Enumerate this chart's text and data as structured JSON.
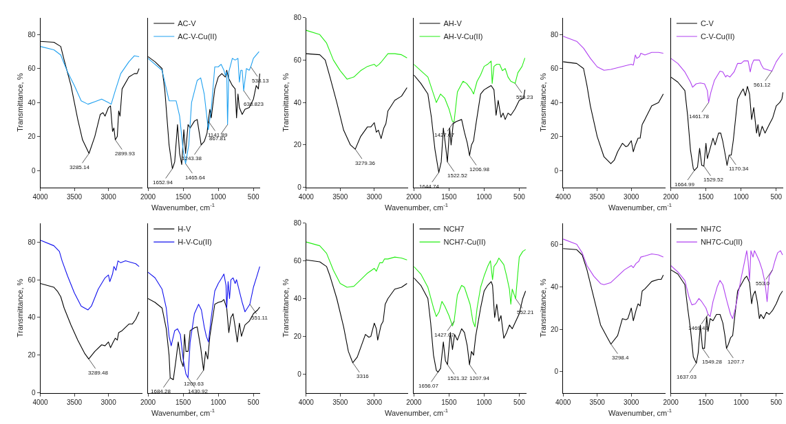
{
  "chart_data": [
    {
      "type": "line",
      "ylabel": "Transmittance, %",
      "xlim": [
        4000,
        2500
      ],
      "xticks": [
        4000,
        3500,
        3000
      ],
      "ylim": [
        -10,
        90
      ],
      "yticks": [
        0,
        20,
        40,
        60,
        80
      ],
      "series": [
        {
          "color": "#000000",
          "x": [
            4000,
            3800,
            3700,
            3650,
            3550,
            3450,
            3380,
            3285.14,
            3200,
            3120,
            3080,
            3050,
            3000,
            2970,
            2940,
            2920,
            2899.93,
            2870,
            2850,
            2830,
            2800,
            2700,
            2620,
            2580,
            2550
          ],
          "values": [
            76,
            75.5,
            73,
            65,
            50,
            30,
            18,
            10,
            20,
            33,
            34,
            32,
            37,
            38,
            23,
            25,
            18,
            20,
            35,
            32,
            48,
            55,
            57,
            57,
            60
          ]
        },
        {
          "color": "#1ea0f0",
          "x": [
            4000,
            3800,
            3700,
            3600,
            3500,
            3400,
            3300,
            3200,
            3100,
            3000,
            2960,
            2900,
            2820,
            2700,
            2620,
            2550
          ],
          "values": [
            73,
            71,
            68,
            58,
            50,
            41,
            39,
            40.5,
            42,
            40,
            39,
            47,
            57,
            64,
            67.5,
            67
          ]
        }
      ],
      "annotations": [
        {
          "text": "3285.14",
          "x": 3285.14,
          "y": 10
        },
        {
          "text": "2899.93",
          "x": 2899.93,
          "y": 18
        }
      ]
    },
    {
      "type": "line",
      "xlabel": "Wavenumber, cm$^{-1}$",
      "xlim": [
        2000,
        400
      ],
      "xticks": [
        2000,
        1500,
        1000,
        500
      ],
      "ylim": [
        -10,
        90
      ],
      "tick_labels": "x",
      "legend": "top left",
      "series": [
        {
          "name": "AC-V",
          "color": "#000000",
          "x": [
            2000,
            1900,
            1800,
            1760,
            1700,
            1652.94,
            1620,
            1580,
            1550,
            1520,
            1490,
            1465.64,
            1430,
            1400,
            1340,
            1300,
            1243.38,
            1200,
            1160,
            1141.89,
            1120,
            1100,
            1050,
            1000,
            950,
            900,
            880,
            850,
            800,
            760,
            740,
            720,
            700,
            660,
            620,
            560,
            500,
            460,
            430,
            410
          ],
          "values": [
            67,
            64,
            60,
            47,
            15,
            1,
            5,
            27,
            10,
            3.5,
            24,
            10,
            27,
            25,
            29,
            30,
            15,
            17,
            22,
            29,
            36,
            31,
            48,
            55,
            57,
            55,
            59,
            54,
            50,
            48,
            31,
            45,
            37,
            33,
            36,
            37,
            42,
            50,
            48,
            57
          ]
        },
        {
          "name": "AC-V-Cu(II)",
          "color": "#1ea0f0",
          "x": [
            2000,
            1800,
            1700,
            1600,
            1550,
            1500,
            1465.64,
            1420,
            1380,
            1300,
            1250,
            1200,
            1141.89,
            1100,
            1050,
            1000,
            960,
            920,
            900,
            880,
            867.81,
            850,
            800,
            760,
            720,
            700,
            680,
            660,
            638.823,
            600,
            560,
            538.13,
            500,
            420
          ],
          "values": [
            66,
            59,
            41,
            41,
            32,
            12,
            4,
            15,
            40,
            53,
            54.5,
            45,
            24,
            36,
            61,
            61,
            62.5,
            59,
            56,
            58,
            27,
            58,
            66,
            65,
            66,
            52,
            59,
            59,
            47,
            60,
            59,
            61,
            66,
            70
          ]
        }
      ],
      "annotations": [
        {
          "text": "1652.94",
          "x": 1652.94,
          "y": 1
        },
        {
          "text": "1465.64",
          "x": 1465.64,
          "y": 4
        },
        {
          "text": "1243.38",
          "x": 1243.38,
          "y": 15
        },
        {
          "text": "1141.89",
          "x": 1141.89,
          "y": 29
        },
        {
          "text": "867.81",
          "x": 867.81,
          "y": 27
        },
        {
          "text": "638.823",
          "x": 638.823,
          "y": 47
        },
        {
          "text": "538.13",
          "x": 538.13,
          "y": 61
        }
      ]
    },
    {
      "type": "line",
      "ylabel": "Transmittance, %",
      "xlim": [
        4000,
        2500
      ],
      "xticks": [
        4000,
        3500,
        3000
      ],
      "ylim": [
        0,
        80
      ],
      "yticks": [
        0,
        20,
        40,
        60,
        80
      ],
      "series": [
        {
          "color": "#000000",
          "x": [
            4000,
            3800,
            3720,
            3650,
            3550,
            3450,
            3350,
            3279.36,
            3200,
            3100,
            3050,
            3000,
            2970,
            2940,
            2900,
            2860,
            2830,
            2800,
            2700,
            2600,
            2520
          ],
          "values": [
            63,
            62.5,
            60,
            52,
            40,
            27,
            20,
            18,
            24,
            28.5,
            28.5,
            30.5,
            26,
            27,
            23,
            28,
            30,
            36,
            41,
            43,
            47
          ]
        },
        {
          "color": "#22ee11",
          "x": [
            4000,
            3800,
            3700,
            3600,
            3500,
            3400,
            3300,
            3200,
            3100,
            3000,
            2970,
            2930,
            2900,
            2800,
            2700,
            2600,
            2520
          ],
          "values": [
            74,
            72,
            68,
            60,
            55,
            51,
            52,
            55,
            57,
            58,
            57,
            58,
            59,
            63,
            63,
            62.5,
            61
          ]
        }
      ],
      "annotations": [
        {
          "text": "3279.36",
          "x": 3279.36,
          "y": 18
        }
      ]
    },
    {
      "type": "line",
      "xlabel": "Wavenumber, cm$^{-1}$",
      "xlim": [
        2000,
        400
      ],
      "xticks": [
        2000,
        1500,
        1000,
        500
      ],
      "ylim": [
        0,
        80
      ],
      "tick_labels": "x",
      "legend": "top left",
      "series": [
        {
          "name": "AH-V",
          "color": "#000000",
          "x": [
            2000,
            1900,
            1800,
            1750,
            1700,
            1644.74,
            1610,
            1580,
            1550,
            1522.52,
            1490,
            1470,
            1440,
            1400,
            1320,
            1280,
            1240,
            1206.98,
            1180,
            1150,
            1120,
            1050,
            1000,
            950,
            900,
            860,
            830,
            800,
            760,
            730,
            700,
            660,
            620,
            560,
            500,
            440,
            420
          ],
          "values": [
            53,
            49,
            44,
            33,
            18,
            7,
            12,
            28,
            20,
            12,
            28,
            20,
            30,
            31,
            32,
            26,
            21,
            15,
            20,
            22,
            29,
            44,
            46,
            47,
            48,
            46,
            34,
            41,
            33,
            35,
            32,
            35,
            34,
            37,
            41,
            42,
            46
          ]
        },
        {
          "name": "AH-V-Cu(II)",
          "color": "#22ee11",
          "x": [
            2000,
            1900,
            1800,
            1720,
            1680,
            1620,
            1560,
            1500,
            1450,
            1427.07,
            1380,
            1300,
            1250,
            1180,
            1150,
            1100,
            1050,
            1000,
            950,
            900,
            885,
            860,
            820,
            780,
            740,
            700,
            660,
            620,
            559.23,
            520,
            460,
            420
          ],
          "values": [
            58,
            55,
            52,
            44,
            40,
            44,
            42,
            37,
            31,
            31,
            45,
            50,
            49,
            46,
            44,
            50,
            53,
            57,
            58,
            59.5,
            49,
            57,
            58,
            58,
            55,
            56,
            52,
            50,
            49,
            54,
            57,
            61
          ]
        }
      ],
      "annotations": [
        {
          "text": "1644.74",
          "x": 1644.74,
          "y": 7
        },
        {
          "text": "1522.52",
          "x": 1522.52,
          "y": 12
        },
        {
          "text": "1206.98",
          "x": 1206.98,
          "y": 15
        },
        {
          "text": "1427.07",
          "x": 1427.07,
          "y": 31
        },
        {
          "text": "559.23",
          "x": 559.23,
          "y": 49
        }
      ]
    },
    {
      "type": "line",
      "ylabel": "Transmittance, %",
      "xlim": [
        4000,
        2500
      ],
      "xticks": [
        4000,
        3500,
        3000
      ],
      "ylim": [
        -10,
        90
      ],
      "yticks": [
        0,
        20,
        40,
        60,
        80
      ],
      "series": [
        {
          "color": "#000000",
          "x": [
            4000,
            3800,
            3700,
            3650,
            3600,
            3500,
            3400,
            3300,
            3250,
            3200,
            3130,
            3080,
            3050,
            3000,
            2970,
            2940,
            2900,
            2870,
            2840,
            2800,
            2700,
            2600,
            2530
          ],
          "values": [
            64,
            63,
            60,
            50,
            38,
            20,
            8,
            4,
            6,
            11,
            16,
            14,
            14.5,
            17.5,
            11,
            15,
            19,
            19,
            27,
            30,
            38,
            40,
            45
          ]
        },
        {
          "color": "#b040f0",
          "x": [
            4000,
            3800,
            3700,
            3600,
            3500,
            3400,
            3300,
            3100,
            3000,
            2970,
            2940,
            2920,
            2880,
            2860,
            2800,
            2700,
            2600,
            2530
          ],
          "values": [
            79,
            76,
            72,
            66,
            61,
            59,
            59.5,
            61.5,
            62.5,
            62,
            68,
            66,
            67,
            69,
            68,
            69.5,
            69.5,
            69
          ]
        }
      ]
    },
    {
      "type": "line",
      "xlabel": "Wavenumber, cm$^{-1}$",
      "xlim": [
        2000,
        400
      ],
      "xticks": [
        2000,
        1500,
        1000,
        500
      ],
      "ylim": [
        -10,
        90
      ],
      "tick_labels": "x",
      "legend": "top left",
      "series": [
        {
          "name": "C-V",
          "color": "#000000",
          "x": [
            2000,
            1900,
            1800,
            1760,
            1720,
            1680,
            1664.99,
            1620,
            1590,
            1560,
            1529.52,
            1500,
            1480,
            1440,
            1400,
            1370,
            1320,
            1290,
            1260,
            1220,
            1200,
            1170.34,
            1140,
            1110,
            1050,
            1000,
            970,
            940,
            910,
            880,
            850,
            820,
            780,
            760,
            740,
            700,
            660,
            600,
            550,
            500,
            450,
            420,
            405
          ],
          "values": [
            55,
            52,
            47,
            32,
            12,
            1,
            0,
            2,
            13,
            3,
            2.5,
            16,
            7,
            13,
            19,
            15,
            22,
            22,
            17,
            8,
            3,
            9,
            9,
            18,
            42,
            46,
            48,
            44,
            49.5,
            45,
            30,
            37,
            22,
            27,
            20,
            26,
            22,
            27,
            31,
            38,
            40,
            42,
            46
          ]
        },
        {
          "name": "C-V-Cu(II)",
          "color": "#b040f0",
          "x": [
            2000,
            1900,
            1800,
            1720,
            1690,
            1640,
            1580,
            1520,
            1480,
            1461.78,
            1430,
            1380,
            1300,
            1260,
            1220,
            1200,
            1160,
            1100,
            1050,
            1000,
            960,
            900,
            870,
            850,
            820,
            780,
            740,
            710,
            680,
            600,
            561.12,
            500,
            450,
            410
          ],
          "values": [
            66,
            63,
            58,
            52,
            49,
            51,
            51.5,
            51,
            47,
            40,
            46,
            53,
            58.5,
            58,
            55,
            56,
            55,
            58,
            63,
            63,
            64.5,
            64.5,
            58,
            62,
            65,
            65,
            65,
            62,
            60,
            59,
            58.5,
            64,
            67,
            69
          ]
        }
      ],
      "annotations": [
        {
          "text": "1664.99",
          "x": 1664.99,
          "y": 0
        },
        {
          "text": "1529.52",
          "x": 1529.52,
          "y": 2.5
        },
        {
          "text": "1170.34",
          "x": 1170.34,
          "y": 9
        },
        {
          "text": "1461.78",
          "x": 1461.78,
          "y": 40
        },
        {
          "text": "561.12",
          "x": 561.12,
          "y": 58.5
        }
      ]
    },
    {
      "type": "line",
      "ylabel": "Transmittance, %",
      "xlim": [
        4000,
        2500
      ],
      "xticks": [
        4000,
        3500,
        3000
      ],
      "ylim": [
        0,
        90
      ],
      "yticks": [
        0,
        20,
        40,
        60,
        80
      ],
      "series": [
        {
          "color": "#000000",
          "x": [
            4000,
            3800,
            3750,
            3700,
            3650,
            3550,
            3450,
            3350,
            3289.48,
            3200,
            3100,
            3050,
            3000,
            2970,
            2930,
            2900,
            2870,
            2850,
            2800,
            2700,
            2650,
            2600,
            2550
          ],
          "values": [
            58,
            56,
            54,
            51,
            45,
            36,
            28,
            21,
            18,
            22,
            25.5,
            25,
            27,
            24,
            27,
            29,
            28,
            32,
            33,
            36.5,
            36.5,
            39,
            43
          ]
        },
        {
          "color": "#1010ee",
          "x": [
            4000,
            3800,
            3720,
            3680,
            3600,
            3500,
            3400,
            3350,
            3300,
            3250,
            3150,
            3050,
            3000,
            2980,
            2940,
            2920,
            2890,
            2860,
            2820,
            2750,
            2600,
            2550
          ],
          "values": [
            81,
            78,
            75,
            70,
            62,
            53,
            46,
            45,
            44,
            46,
            55,
            61,
            62.5,
            59,
            63,
            67,
            65,
            70,
            69,
            70,
            68.5,
            67
          ]
        }
      ],
      "annotations": [
        {
          "text": "3289.48",
          "x": 3289.48,
          "y": 18
        }
      ]
    },
    {
      "type": "line",
      "xlabel": "Wavenumber, cm$^{-1}$",
      "xlim": [
        2000,
        400
      ],
      "xticks": [
        2000,
        1500,
        1000,
        500
      ],
      "ylim": [
        0,
        90
      ],
      "tick_labels": "x",
      "legend": "top left",
      "series": [
        {
          "name": "H-V",
          "color": "#000000",
          "x": [
            2000,
            1900,
            1800,
            1740,
            1700,
            1684.28,
            1640,
            1600,
            1570,
            1530,
            1500,
            1480,
            1460,
            1430,
            1400,
            1340,
            1300,
            1250,
            1209.63,
            1180,
            1150,
            1120,
            1050,
            1000,
            950,
            920,
            880,
            850,
            820,
            790,
            760,
            730,
            700,
            670,
            620,
            560,
            500,
            440,
            410
          ],
          "values": [
            50,
            48,
            45,
            34,
            20,
            8,
            7,
            18,
            27,
            17,
            14,
            31,
            22,
            22,
            33,
            34.5,
            35,
            24,
            12,
            22,
            18,
            30,
            47,
            48,
            48.5,
            49.5,
            45,
            32,
            40,
            42,
            35,
            27,
            37,
            30,
            36,
            38,
            42,
            44,
            45.5
          ]
        },
        {
          "name": "H-V-Cu(II)",
          "color": "#1010ee",
          "x": [
            2000,
            1900,
            1800,
            1740,
            1700,
            1670,
            1620,
            1580,
            1540,
            1500,
            1460,
            1430.92,
            1400,
            1340,
            1280,
            1240,
            1200,
            1170,
            1140,
            1100,
            1050,
            1000,
            950,
            920,
            890,
            880,
            860,
            840,
            820,
            790,
            760,
            740,
            700,
            660,
            620,
            551.11,
            500,
            450,
            410
          ],
          "values": [
            64,
            61,
            55,
            45,
            30,
            25,
            33,
            34,
            31,
            18,
            10,
            8,
            27,
            42,
            47,
            44,
            35,
            30,
            27,
            40,
            54,
            58,
            61,
            63,
            57,
            45,
            59,
            50,
            60,
            61,
            58,
            60,
            54,
            48,
            43,
            47,
            56,
            62,
            67
          ]
        }
      ],
      "annotations": [
        {
          "text": "1684.28",
          "x": 1684.28,
          "y": 8
        },
        {
          "text": "1430.92",
          "x": 1430.92,
          "y": 8
        },
        {
          "text": "1209.63",
          "x": 1209.63,
          "y": 12
        },
        {
          "text": "551.11",
          "x": 551.11,
          "y": 47
        }
      ]
    },
    {
      "type": "line",
      "ylabel": "Transmittance, %",
      "xlim": [
        4000,
        2500
      ],
      "xticks": [
        4000,
        3500,
        3000
      ],
      "ylim": [
        -10,
        80
      ],
      "yticks": [
        0,
        20,
        40,
        60,
        80
      ],
      "series": [
        {
          "color": "#000000",
          "x": [
            4000,
            3800,
            3700,
            3650,
            3550,
            3450,
            3380,
            3316,
            3250,
            3200,
            3130,
            3080,
            3050,
            3000,
            2970,
            2950,
            2900,
            2870,
            2840,
            2800,
            2700,
            2600,
            2520
          ],
          "values": [
            60.5,
            59.5,
            57,
            52,
            40,
            25,
            12,
            6,
            9,
            14,
            21,
            19.5,
            20,
            27,
            24,
            18,
            26,
            28,
            37,
            40,
            45,
            46,
            48
          ]
        },
        {
          "color": "#22ee11",
          "x": [
            4000,
            3800,
            3700,
            3600,
            3500,
            3400,
            3300,
            3200,
            3100,
            3000,
            2970,
            2920,
            2880,
            2850,
            2800,
            2700,
            2600,
            2520
          ],
          "values": [
            70,
            68,
            64,
            55,
            48,
            46,
            46.5,
            50,
            53.5,
            56,
            54.5,
            59,
            59,
            61,
            61,
            62,
            61.5,
            60.5
          ]
        }
      ],
      "annotations": [
        {
          "text": "3316",
          "x": 3316,
          "y": 6
        }
      ]
    },
    {
      "type": "line",
      "xlabel": "Wavenumber, cm$^{-1}$",
      "xlim": [
        2000,
        400
      ],
      "xticks": [
        2000,
        1500,
        1000,
        500
      ],
      "ylim": [
        -10,
        80
      ],
      "tick_labels": "x",
      "legend": "top left",
      "series": [
        {
          "name": "NCH7",
          "color": "#000000",
          "x": [
            2000,
            1900,
            1800,
            1760,
            1720,
            1680,
            1656.07,
            1620,
            1580,
            1550,
            1521.32,
            1480,
            1450,
            1420,
            1380,
            1320,
            1280,
            1240,
            1207.94,
            1180,
            1150,
            1120,
            1050,
            1000,
            950,
            900,
            880,
            850,
            820,
            790,
            760,
            720,
            680,
            640,
            600,
            550,
            500,
            450,
            410
          ],
          "values": [
            51,
            47,
            40,
            27,
            10,
            2,
            1,
            3,
            17,
            7,
            5,
            22,
            13,
            21,
            18,
            24,
            22,
            15,
            5,
            12,
            10,
            20,
            35,
            44,
            47,
            49,
            47,
            30,
            37,
            28,
            31,
            19,
            22,
            26,
            24,
            28,
            32,
            40,
            44
          ]
        },
        {
          "name": "NCH7-Cu(II)",
          "color": "#22ee11",
          "x": [
            2000,
            1900,
            1800,
            1720,
            1680,
            1640,
            1600,
            1560,
            1500,
            1450,
            1427.07,
            1380,
            1320,
            1280,
            1200,
            1160,
            1130,
            1100,
            1050,
            1000,
            950,
            910,
            880,
            860,
            820,
            790,
            760,
            720,
            680,
            640,
            620,
            600,
            552.21,
            500,
            450,
            410
          ],
          "values": [
            57,
            53,
            46,
            35,
            30.5,
            33,
            38.5,
            36,
            31,
            25.5,
            28,
            42,
            47,
            46,
            37,
            28,
            25,
            35,
            46,
            52,
            57,
            60,
            50,
            57,
            59,
            61.5,
            60,
            58,
            52,
            45,
            37,
            45,
            40,
            62,
            65,
            66
          ]
        }
      ],
      "annotations": [
        {
          "text": "1656.07",
          "x": 1656.07,
          "y": 1
        },
        {
          "text": "1521.32",
          "x": 1521.32,
          "y": 5
        },
        {
          "text": "1207.94",
          "x": 1207.94,
          "y": 5
        },
        {
          "text": "1427.07",
          "x": 1427.07,
          "y": 28
        },
        {
          "text": "552.21",
          "x": 552.21,
          "y": 40
        }
      ]
    },
    {
      "type": "line",
      "ylabel": "Transmittance, %",
      "xlim": [
        4000,
        2500
      ],
      "xticks": [
        4000,
        3500,
        3000
      ],
      "ylim": [
        -10,
        70
      ],
      "yticks": [
        0,
        20,
        40,
        60
      ],
      "series": [
        {
          "color": "#000000",
          "x": [
            4000,
            3800,
            3720,
            3650,
            3550,
            3450,
            3350,
            3298.4,
            3200,
            3130,
            3080,
            3050,
            3000,
            2970,
            2930,
            2900,
            2870,
            2840,
            2800,
            2700,
            2600,
            2560,
            2530
          ],
          "values": [
            58,
            57.5,
            55,
            48,
            35,
            22,
            16,
            13,
            17,
            25,
            24.5,
            25,
            30,
            24,
            29,
            32,
            31,
            38,
            39,
            42.5,
            43.5,
            43.5,
            45.5
          ]
        },
        {
          "color": "#b040f0",
          "x": [
            4000,
            3800,
            3720,
            3650,
            3550,
            3450,
            3400,
            3300,
            3200,
            3100,
            3000,
            2970,
            2930,
            2890,
            2860,
            2800,
            2700,
            2600,
            2530
          ],
          "values": [
            62.5,
            60,
            56,
            50,
            45,
            41.5,
            41,
            42,
            45,
            48,
            50,
            49,
            51,
            52,
            54,
            54.5,
            55.5,
            55,
            54
          ]
        }
      ],
      "annotations": [
        {
          "text": "3298.4",
          "x": 3298.4,
          "y": 13
        }
      ]
    },
    {
      "type": "line",
      "xlabel": "Wavenumber, cm$^{-1}$",
      "xlim": [
        2000,
        400
      ],
      "xticks": [
        2000,
        1500,
        1000,
        500
      ],
      "ylim": [
        -10,
        70
      ],
      "tick_labels": "x",
      "legend": "top left",
      "series": [
        {
          "name": "NH7C",
          "color": "#000000",
          "x": [
            2000,
            1900,
            1800,
            1760,
            1720,
            1680,
            1637.03,
            1610,
            1580,
            1549.28,
            1520,
            1490,
            1470,
            1440,
            1400,
            1350,
            1300,
            1260,
            1230,
            1207.7,
            1180,
            1150,
            1120,
            1080,
            1050,
            1000,
            950,
            920,
            880,
            850,
            830,
            800,
            770,
            740,
            720,
            680,
            640,
            600,
            550,
            500,
            450,
            410
          ],
          "values": [
            48,
            46,
            41,
            30,
            20,
            7,
            4,
            9,
            22,
            11,
            11,
            26,
            19,
            25,
            24,
            27,
            27,
            23,
            17,
            11,
            13,
            16,
            17,
            29,
            38,
            41,
            44,
            45,
            42,
            32,
            36,
            38,
            33,
            25,
            27,
            25,
            28,
            27,
            29,
            32,
            36,
            38
          ]
        },
        {
          "name": "NH7C-Cu(II)",
          "color": "#b040f0",
          "x": [
            2000,
            1900,
            1800,
            1740,
            1700,
            1650,
            1600,
            1560,
            1500,
            1469.49,
            1440,
            1400,
            1340,
            1300,
            1260,
            1200,
            1150,
            1120,
            1080,
            1000,
            950,
            920,
            900,
            880,
            860,
            830,
            810,
            780,
            740,
            700,
            660,
            630,
            600,
            553.0,
            520,
            480,
            440,
            410
          ],
          "values": [
            50,
            47,
            43,
            35,
            31.5,
            32,
            34.5,
            33,
            30,
            27,
            26,
            33,
            40,
            43,
            41,
            33,
            27,
            25,
            30,
            44,
            52,
            57,
            52,
            43,
            57,
            54,
            57,
            55,
            52,
            48,
            42,
            33,
            45,
            48,
            52,
            56,
            57,
            55
          ]
        }
      ],
      "annotations": [
        {
          "text": "1637.03",
          "x": 1637.03,
          "y": 4
        },
        {
          "text": "1549.28",
          "x": 1549.28,
          "y": 11
        },
        {
          "text": "1207.7",
          "x": 1207.7,
          "y": 11
        },
        {
          "text": "1469.49",
          "x": 1469.49,
          "y": 27
        },
        {
          "text": "553.0",
          "x": 553.0,
          "y": 48
        }
      ]
    }
  ]
}
